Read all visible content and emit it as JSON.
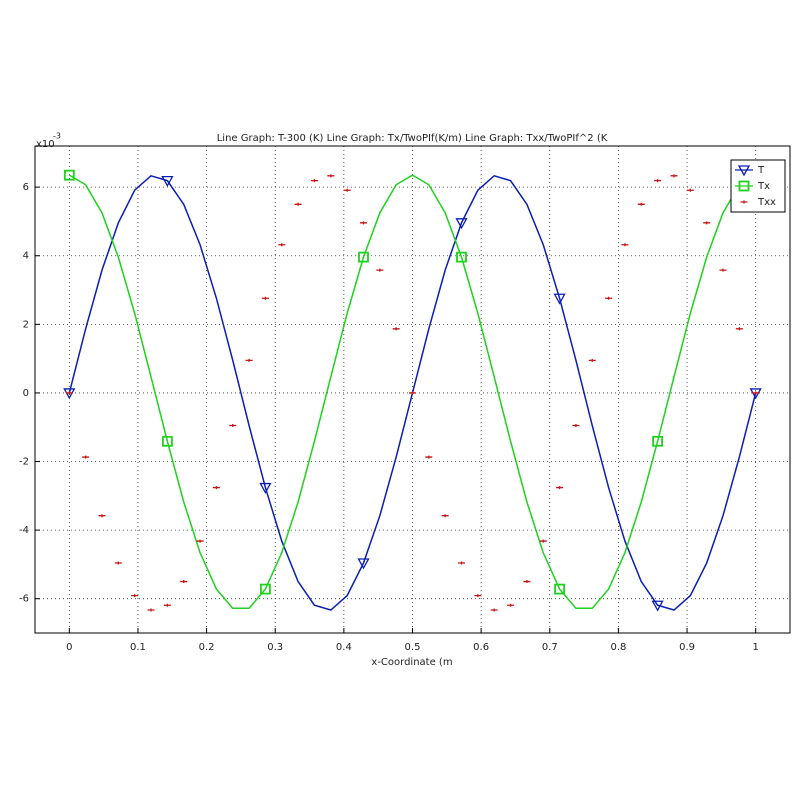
{
  "chart_data": {
    "type": "line",
    "title": "Line Graph: T-300 (K) Line Graph: Tx/TwoPIf(K/m) Line Graph: Txx/TwoPIf^2 (K",
    "x_label": "x-Coordinate (m",
    "y_exponent_base": "x10",
    "y_exponent": "-3",
    "x": [
      0,
      0.0238,
      0.0476,
      0.0714,
      0.0952,
      0.119,
      0.1429,
      0.1667,
      0.1905,
      0.2143,
      0.2381,
      0.2619,
      0.2857,
      0.3095,
      0.3333,
      0.3571,
      0.381,
      0.4048,
      0.4286,
      0.4524,
      0.4762,
      0.5,
      0.5238,
      0.5476,
      0.5714,
      0.5952,
      0.619,
      0.6429,
      0.6667,
      0.6905,
      0.7143,
      0.7381,
      0.7619,
      0.7857,
      0.8095,
      0.8333,
      0.8571,
      0.881,
      0.9048,
      0.9286,
      0.9524,
      0.9762,
      1
    ],
    "series": [
      {
        "name": "T",
        "color": "#0a1eb4",
        "marker": "triangle-down",
        "line": true,
        "values": [
          0,
          1.87,
          3.58,
          4.96,
          5.91,
          6.33,
          6.19,
          5.5,
          4.32,
          2.76,
          0.95,
          -0.95,
          -2.76,
          -4.32,
          -5.5,
          -6.19,
          -6.33,
          -5.91,
          -4.96,
          -3.58,
          -1.87,
          0,
          1.87,
          3.58,
          4.96,
          5.91,
          6.33,
          6.19,
          5.5,
          4.32,
          2.76,
          0.95,
          -0.95,
          -2.76,
          -4.32,
          -5.5,
          -6.19,
          -6.33,
          -5.91,
          -4.96,
          -3.58,
          -1.87,
          0
        ]
      },
      {
        "name": "Tx",
        "color": "#1ed21e",
        "marker": "square",
        "line": true,
        "values": [
          6.35,
          6.07,
          5.25,
          3.96,
          2.32,
          0.47,
          -1.41,
          -3.18,
          -4.66,
          -5.72,
          -6.28,
          -6.28,
          -5.72,
          -4.66,
          -3.18,
          -1.41,
          0.47,
          2.32,
          3.96,
          5.25,
          6.07,
          6.35,
          6.07,
          5.25,
          3.96,
          2.32,
          0.47,
          -1.41,
          -3.18,
          -4.66,
          -5.72,
          -6.28,
          -6.28,
          -5.72,
          -4.66,
          -3.18,
          -1.41,
          0.47,
          2.32,
          3.96,
          5.25,
          6.07,
          6.35
        ]
      },
      {
        "name": "Txx",
        "color": "#c81414",
        "marker": "plus",
        "line": false,
        "values": [
          0,
          -1.87,
          -3.58,
          -4.96,
          -5.91,
          -6.33,
          -6.19,
          -5.5,
          -4.32,
          -2.76,
          -0.95,
          0.95,
          2.76,
          4.32,
          5.5,
          6.19,
          6.33,
          5.91,
          4.96,
          3.58,
          1.87,
          0,
          -1.87,
          -3.58,
          -4.96,
          -5.91,
          -6.33,
          -6.19,
          -5.5,
          -4.32,
          -2.76,
          -0.95,
          0.95,
          2.76,
          4.32,
          5.5,
          6.19,
          6.33,
          5.91,
          4.96,
          3.58,
          1.87,
          0
        ]
      }
    ],
    "xlim": [
      -0.05,
      1.05
    ],
    "ylim": [
      -7,
      7.2
    ],
    "xticks": [
      0,
      0.1,
      0.2,
      0.3,
      0.4,
      0.5,
      0.6,
      0.7,
      0.8,
      0.9,
      1
    ],
    "yticks": [
      -6,
      -4,
      -2,
      0,
      2,
      4,
      6
    ],
    "grid": true,
    "legend": "northeast"
  }
}
